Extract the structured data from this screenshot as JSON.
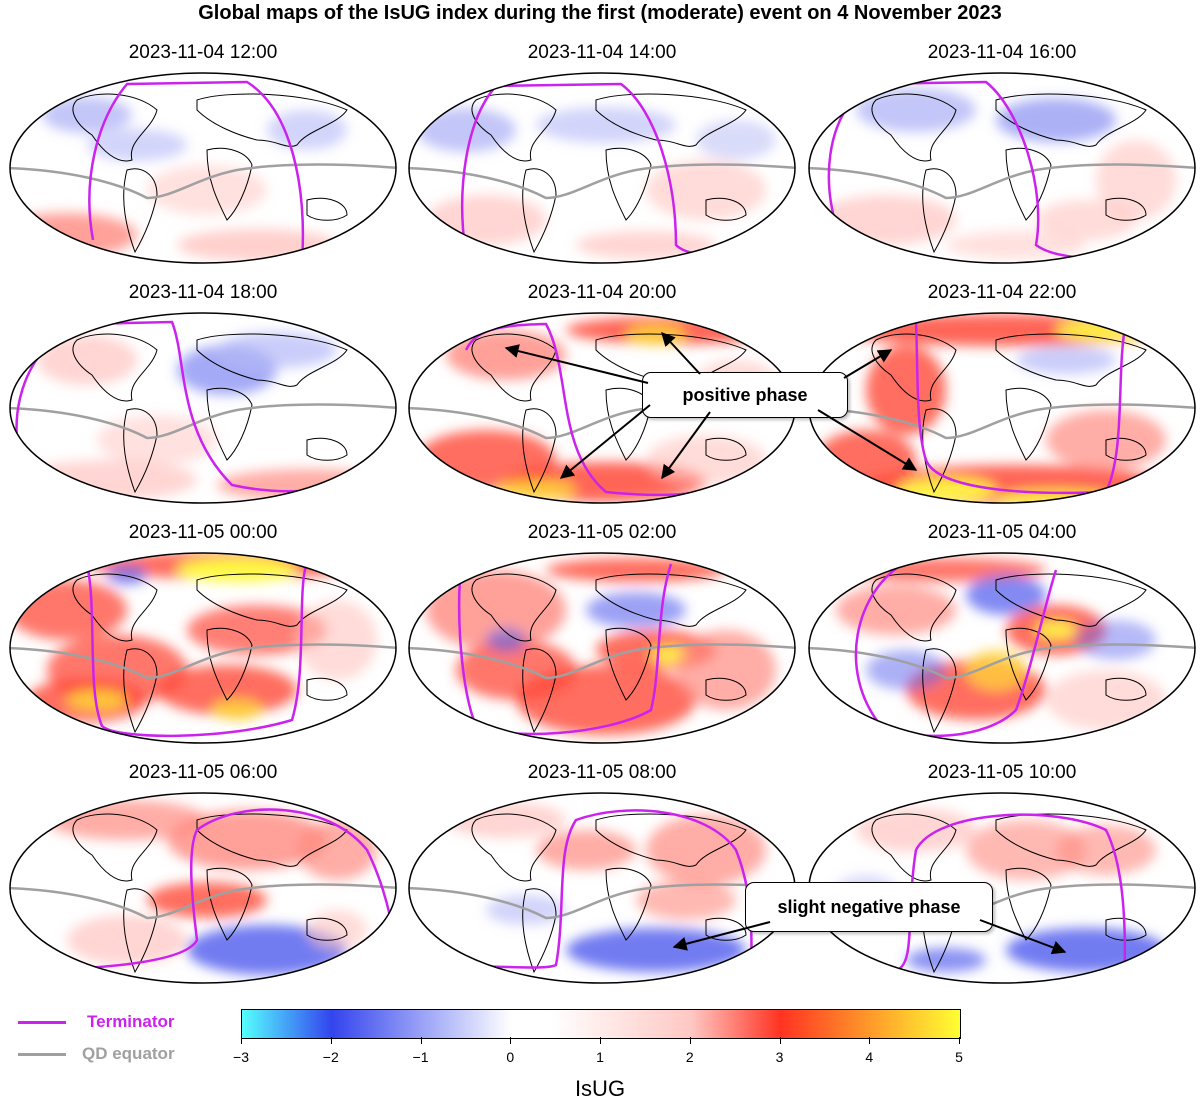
{
  "title": "Global maps of the IsUG index during the first (moderate) event on 4 November 2023",
  "panels": [
    {
      "label": "2023-11-04 12:00"
    },
    {
      "label": "2023-11-04 14:00"
    },
    {
      "label": "2023-11-04 16:00"
    },
    {
      "label": "2023-11-04 18:00"
    },
    {
      "label": "2023-11-04 20:00"
    },
    {
      "label": "2023-11-04 22:00"
    },
    {
      "label": "2023-11-05 00:00"
    },
    {
      "label": "2023-11-05 02:00"
    },
    {
      "label": "2023-11-05 04:00"
    },
    {
      "label": "2023-11-05 06:00"
    },
    {
      "label": "2023-11-05 08:00"
    },
    {
      "label": "2023-11-05 10:00"
    }
  ],
  "annotations": {
    "positive": "positive phase",
    "negative": "slight negative phase"
  },
  "legend": {
    "terminator": "Terminator",
    "qd_equator": "QD equator",
    "terminator_color": "#cc22ee",
    "qd_color": "#a0a0a0"
  },
  "colorbar": {
    "label": "IsUG",
    "ticks": [
      "−3",
      "−2",
      "−1",
      "0",
      "1",
      "2",
      "3",
      "4",
      "5"
    ],
    "stops": [
      "#55ffff",
      "#3344ee",
      "#ffffff",
      "#ff3322",
      "#ffff33"
    ]
  }
}
